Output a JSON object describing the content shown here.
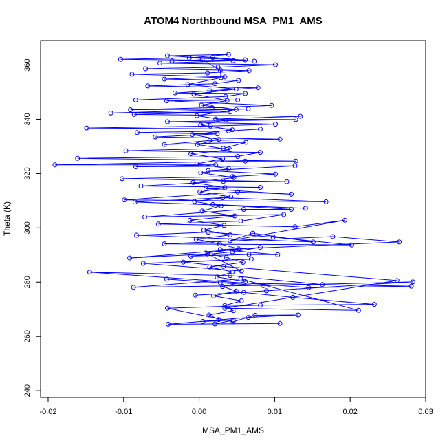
{
  "chart_data": {
    "type": "line",
    "title": "ATOM4 Northbound MSA_PM1_AMS",
    "xlabel": "MSA_PM1_AMS",
    "ylabel": "Theta (K)",
    "xlim": [
      -0.021,
      0.03
    ],
    "ylim": [
      237.5,
      369
    ],
    "x_ticks": [
      -0.02,
      -0.01,
      0.0,
      0.01,
      0.02,
      0.03
    ],
    "x_tick_labels": [
      "-0.02",
      "-0.01",
      "0.00",
      "0.01",
      "0.02",
      "0.03"
    ],
    "y_ticks": [
      240,
      260,
      280,
      300,
      320,
      340,
      360
    ],
    "y_tick_labels": [
      "240",
      "260",
      "280",
      "300",
      "320",
      "340",
      "360"
    ],
    "grid": false,
    "legend": "none",
    "marker": "open-circle",
    "series": [
      {
        "color": "#0000ff",
        "points": [
          [
            0.0005,
            265.5
          ],
          [
            0.0045,
            266
          ],
          [
            0.0021,
            264.6
          ],
          [
            0.0107,
            264.8
          ],
          [
            -0.0041,
            264.5
          ],
          [
            0.0065,
            267
          ],
          [
            0.0131,
            267.9
          ],
          [
            0.0074,
            267.8
          ],
          [
            0.0045,
            265.4
          ],
          [
            -0.0042,
            270.4
          ],
          [
            0.0081,
            271.5
          ],
          [
            0.0232,
            271.8
          ],
          [
            0.0124,
            274.4
          ],
          [
            0.0059,
            276.2
          ],
          [
            -0.0005,
            275.2
          ],
          [
            0.0089,
            276.8
          ],
          [
            0.0283,
            280.1
          ],
          [
            0.0085,
            278.7
          ],
          [
            -0.0043,
            281.1
          ],
          [
            0.0028,
            279.8
          ],
          [
            0.0281,
            278.5
          ],
          [
            0.0145,
            278
          ],
          [
            -0.0145,
            283.7
          ],
          [
            0.0041,
            282.4
          ],
          [
            0.0163,
            279.1
          ],
          [
            -0.0087,
            278.1
          ],
          [
            0.0055,
            281.2
          ],
          [
            0.0211,
            269.6
          ],
          [
            0.0034,
            270.4
          ],
          [
            0.0262,
            280.6
          ],
          [
            0.0032,
            285.8
          ],
          [
            -0.0021,
            287.4
          ],
          [
            0.0069,
            288.5
          ],
          [
            -0.0074,
            286.9
          ],
          [
            0.0056,
            284.1
          ],
          [
            0.0011,
            290.4
          ],
          [
            -0.0092,
            288.9
          ],
          [
            0.0081,
            292.8
          ],
          [
            0.0044,
            291.2
          ],
          [
            -0.0011,
            289.6
          ],
          [
            0.0066,
            290.2
          ],
          [
            0.0104,
            290.1
          ],
          [
            0.0028,
            292
          ],
          [
            0.0265,
            294.8
          ],
          [
            0.0177,
            296.8
          ],
          [
            -0.0046,
            294.1
          ],
          [
            0.0202,
            293.7
          ],
          [
            0.0098,
            296.6
          ],
          [
            0.0012,
            298.4
          ],
          [
            -0.0083,
            297.3
          ],
          [
            0.0151,
            294.8
          ],
          [
            0.0071,
            298
          ],
          [
            0.0041,
            295.3
          ],
          [
            0.0193,
            302.8
          ],
          [
            0.0127,
            300.4
          ],
          [
            -0.0054,
            301.4
          ],
          [
            0.0055,
            302.5
          ],
          [
            0.0112,
            304.9
          ],
          [
            -0.0072,
            304
          ],
          [
            0.0059,
            306.8
          ],
          [
            0.0122,
            306.8
          ],
          [
            0.0018,
            308.6
          ],
          [
            0.0141,
            307.2
          ],
          [
            -0.0085,
            309.5
          ],
          [
            0.0031,
            311.1
          ],
          [
            0.0168,
            309.6
          ],
          [
            -0.0099,
            310.3
          ],
          [
            0.0051,
            313.2
          ],
          [
            0.0122,
            312.4
          ],
          [
            0.0009,
            314.4
          ],
          [
            0.0081,
            314.9
          ],
          [
            -0.0077,
            315.4
          ],
          [
            0.0032,
            317.1
          ],
          [
            0.0116,
            317
          ],
          [
            -0.0102,
            318.1
          ],
          [
            0.0044,
            318.9
          ],
          [
            0.0101,
            319.8
          ],
          [
            0.0012,
            321.1
          ],
          [
            0.0127,
            322.8
          ],
          [
            -0.0084,
            322.5
          ],
          [
            0.0022,
            323.2
          ],
          [
            -0.0191,
            323.2
          ],
          [
            0.0061,
            324.6
          ],
          [
            0.0128,
            324.6
          ],
          [
            -0.0161,
            325.6
          ],
          [
            0.0051,
            326.3
          ],
          [
            0.0081,
            327.8
          ],
          [
            -0.0097,
            328.4
          ],
          [
            0.0032,
            329.3
          ],
          [
            0.0062,
            331.5
          ],
          [
            -0.0046,
            330.7
          ],
          [
            0.0014,
            332.2
          ],
          [
            0.0107,
            332.7
          ],
          [
            -0.0058,
            333.5
          ],
          [
            0.0024,
            334.6
          ],
          [
            -0.0082,
            335.1
          ],
          [
            0.0039,
            335.7
          ],
          [
            0.0081,
            336.4
          ],
          [
            -0.0149,
            336.8
          ],
          [
            0.0015,
            337.5
          ],
          [
            0.0101,
            338.2
          ],
          [
            -0.0042,
            339.1
          ],
          [
            0.0128,
            339.9
          ],
          [
            0.0022,
            340.1
          ],
          [
            0.0134,
            341.1
          ],
          [
            -0.0086,
            341.8
          ],
          [
            0.0041,
            342.7
          ],
          [
            -0.0117,
            342.3
          ],
          [
            0.0065,
            343.8
          ],
          [
            -0.0091,
            343.5
          ],
          [
            0.0017,
            344.3
          ],
          [
            0.0096,
            345.1
          ],
          [
            -0.0043,
            346.8
          ],
          [
            0.0051,
            347.1
          ],
          [
            -0.0084,
            347.1
          ],
          [
            0.0035,
            348.4
          ],
          [
            0.0061,
            349.5
          ],
          [
            -0.0032,
            349.7
          ],
          [
            0.0014,
            350.5
          ],
          [
            0.0078,
            351.6
          ],
          [
            -0.0068,
            352.3
          ],
          [
            0.0021,
            353.1
          ],
          [
            0.0052,
            354.3
          ],
          [
            -0.0046,
            354.8
          ],
          [
            0.0034,
            355.6
          ],
          [
            -0.0089,
            356.6
          ],
          [
            0.0011,
            357.1
          ],
          [
            0.0066,
            357.9
          ],
          [
            -0.0071,
            358.6
          ],
          [
            0.0025,
            359.2
          ],
          [
            0.0101,
            360.1
          ],
          [
            -0.0052,
            360.7
          ],
          [
            0.0045,
            361.6
          ],
          [
            -0.0104,
            362.1
          ],
          [
            0.0018,
            362.8
          ],
          [
            0.0073,
            361.4
          ],
          [
            -0.0042,
            363.4
          ],
          [
            0.0039,
            363.9
          ],
          [
            -0.0013,
            362.6
          ],
          [
            0.0061,
            361.9
          ],
          [
            -0.0036,
            361.5
          ],
          [
            0.0004,
            361.9
          ],
          [
            0.0028,
            358.1
          ],
          [
            0.0029,
            355.3
          ],
          [
            -0.0015,
            352.8
          ],
          [
            0.0049,
            351.1
          ],
          [
            -0.0007,
            349.3
          ],
          [
            0.0037,
            346.9
          ],
          [
            0.0003,
            345.2
          ],
          [
            0.0049,
            343.6
          ],
          [
            -0.0003,
            341.3
          ],
          [
            0.0035,
            339.7
          ],
          [
            0.0002,
            337.9
          ],
          [
            0.0044,
            336.1
          ],
          [
            -0.0009,
            334.4
          ],
          [
            0.0026,
            332.6
          ],
          [
            -0.0002,
            330.7
          ],
          [
            0.0041,
            328.8
          ],
          [
            -0.0011,
            327.3
          ],
          [
            0.0031,
            325.4
          ],
          [
            -0.0003,
            323.6
          ],
          [
            0.0039,
            321.8
          ],
          [
            0.0002,
            320.3
          ],
          [
            0.0046,
            318.5
          ],
          [
            -0.0008,
            316.7
          ],
          [
            0.0034,
            314.8
          ],
          [
            0.0001,
            313.2
          ],
          [
            0.0042,
            311.4
          ],
          [
            -0.0006,
            309.7
          ],
          [
            0.0029,
            308.1
          ],
          [
            0.0004,
            306.2
          ],
          [
            0.0047,
            304.4
          ],
          [
            -0.0012,
            302.8
          ],
          [
            0.0033,
            300.9
          ],
          [
            0.0006,
            299.2
          ],
          [
            0.0041,
            297.4
          ],
          [
            -0.0004,
            295.8
          ],
          [
            0.0027,
            294.1
          ],
          [
            0.0052,
            292.3
          ],
          [
            0.0009,
            290.7
          ],
          [
            0.0036,
            289.1
          ],
          [
            0.0058,
            287.3
          ],
          [
            0.0014,
            285.6
          ],
          [
            0.0044,
            283.8
          ],
          [
            0.0024,
            281.9
          ],
          [
            0.0061,
            280.2
          ],
          [
            0.0031,
            278.4
          ],
          [
            0.0049,
            276.7
          ],
          [
            0.0019,
            274.9
          ],
          [
            0.0056,
            273.1
          ],
          [
            0.0034,
            271.4
          ],
          [
            0.0045,
            269.5
          ],
          [
            0.0013,
            267.9
          ],
          [
            0.0026,
            266.2
          ]
        ]
      }
    ]
  }
}
